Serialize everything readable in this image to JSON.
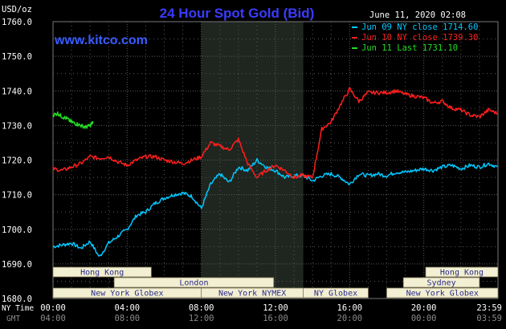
{
  "header": {
    "title": "24 Hour Spot Gold (Bid)",
    "site": "www.kitco.com",
    "unit": "USD/oz",
    "datetime": "June 11, 2020 02:08"
  },
  "colors": {
    "background": "#000000",
    "grid": "#5a5a5a",
    "highlight": "#1f261f",
    "title": "#3b3bff",
    "site": "#3a5cff",
    "jun09": "#00c8ff",
    "jun10": "#ff1e1e",
    "jun11": "#22dd22",
    "axis_text": "#ffffff",
    "gmt_text": "#8a8a8a",
    "session_fill": "#f2efd2",
    "session_text": "#2a2a8a"
  },
  "sessions": {
    "hong_kong_1": "Hong Kong",
    "london": "London",
    "new_york_globex_1": "New York Globex",
    "new_york_nymex": "New York NYMEX",
    "ny_globex": "NY Globex",
    "hong_kong_2": "Hong Kong",
    "sydney": "Sydney",
    "new_york_globex_2": "New York Globex"
  },
  "axis": {
    "ny_time_label": "NY Time",
    "gmt_label": "GMT",
    "ny_ticks": [
      "00:00",
      "04:00",
      "08:00",
      "12:00",
      "16:00",
      "20:00",
      "23:59"
    ],
    "gmt_ticks": [
      "04:00",
      "08:00",
      "12:00",
      "16:00",
      "20:00",
      "00:00",
      "03:59"
    ],
    "y_ticks": [
      "1760.0",
      "1750.0",
      "1740.0",
      "1730.0",
      "1720.0",
      "1710.0",
      "1700.0",
      "1690.0",
      "1680.0"
    ]
  },
  "chart_data": {
    "type": "line",
    "title": "24 Hour Spot Gold (Bid)",
    "ylabel": "USD/oz",
    "xlabel": "NY Time",
    "ylim": [
      1680,
      1760
    ],
    "xlim": [
      0,
      24
    ],
    "grid": true,
    "legend_position": "top-right",
    "highlight_range": [
      8.0,
      13.5
    ],
    "series": [
      {
        "name": "Jun 09 NY close 1714.60",
        "x": [
          0,
          0.5,
          1,
          1.5,
          2,
          2.5,
          3,
          3.5,
          4,
          4.5,
          5,
          5.5,
          6,
          6.5,
          7,
          7.5,
          8,
          8.5,
          9,
          9.5,
          10,
          10.5,
          11,
          11.5,
          12,
          12.5,
          13,
          13.5,
          14,
          14.5,
          15,
          15.5,
          16,
          16.5,
          17,
          17.5,
          18,
          18.5,
          19,
          19.5,
          20,
          20.5,
          21,
          21.5,
          22,
          22.5,
          23,
          23.5,
          23.98
        ],
        "y": [
          1695,
          1695.5,
          1696,
          1694.5,
          1696.5,
          1692,
          1696,
          1698,
          1700,
          1704,
          1705,
          1707.5,
          1709,
          1710,
          1710.5,
          1709.5,
          1706,
          1713,
          1716,
          1713.5,
          1718,
          1717,
          1720,
          1718,
          1717,
          1715,
          1715.5,
          1715.5,
          1714,
          1715.5,
          1716,
          1715,
          1713,
          1716,
          1715.5,
          1716,
          1715.5,
          1716.5,
          1716.5,
          1717,
          1717.5,
          1717,
          1718,
          1718.5,
          1717.5,
          1718.5,
          1718,
          1719,
          1718
        ]
      },
      {
        "name": "Jun 10 NY close 1739.30",
        "x": [
          0,
          0.5,
          1,
          1.5,
          2,
          2.5,
          3,
          3.5,
          4,
          4.5,
          5,
          5.5,
          6,
          6.5,
          7,
          7.5,
          8,
          8.5,
          9,
          9.5,
          10,
          10.5,
          11,
          11.5,
          12,
          12.5,
          13,
          13.5,
          14,
          14.5,
          15,
          15.5,
          16,
          16.5,
          17,
          17.5,
          18,
          18.5,
          19,
          19.5,
          20,
          20.5,
          21,
          21.5,
          22,
          22.5,
          23,
          23.5,
          23.98
        ],
        "y": [
          1717.5,
          1717,
          1718,
          1719,
          1721,
          1720.5,
          1721,
          1719.5,
          1718.5,
          1720,
          1721,
          1721,
          1720,
          1719.5,
          1719,
          1720,
          1721,
          1725,
          1724,
          1723,
          1726,
          1719,
          1715,
          1717,
          1718.5,
          1717,
          1715,
          1715.5,
          1715,
          1729,
          1731,
          1736,
          1740.5,
          1737,
          1739.5,
          1739.5,
          1739.5,
          1740,
          1739,
          1738.5,
          1738,
          1736.5,
          1737,
          1735,
          1734.5,
          1733,
          1732.5,
          1734.5,
          1733.5
        ]
      },
      {
        "name": "Jun 11 Last 1731.10",
        "x": [
          0,
          0.25,
          0.5,
          0.75,
          1,
          1.25,
          1.5,
          1.75,
          2,
          2.17
        ],
        "y": [
          1733,
          1733.5,
          1732.5,
          1732,
          1731,
          1730.5,
          1730,
          1729.5,
          1730,
          1731
        ]
      }
    ]
  }
}
